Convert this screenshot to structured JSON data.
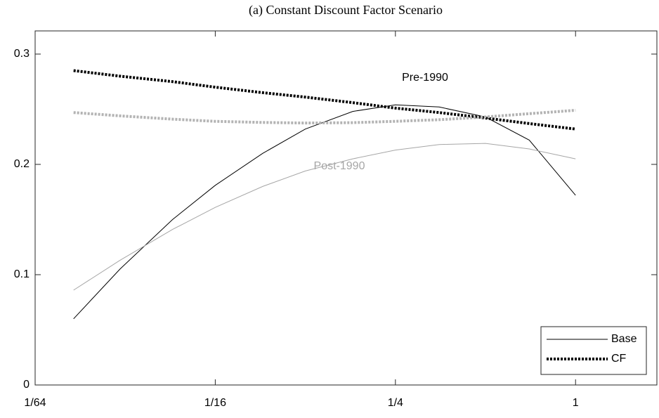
{
  "chart_data": {
    "type": "line",
    "title": "(a) Constant Discount Factor Scenario",
    "log_x_base": 2,
    "x": [
      0.021,
      0.03,
      0.045,
      0.0625,
      0.09,
      0.125,
      0.18,
      0.25,
      0.35,
      0.5,
      0.7,
      1
    ],
    "series": [
      {
        "color": "#000000",
        "dash": "solid",
        "width": 1,
        "values": [
          0.06,
          0.105,
          0.15,
          0.181,
          0.21,
          0.232,
          0.248,
          0.254,
          0.252,
          0.243,
          0.222,
          0.172
        ]
      },
      {
        "color": "#a6a6a6",
        "dash": "solid",
        "width": 1,
        "values": [
          0.086,
          0.113,
          0.141,
          0.161,
          0.18,
          0.194,
          0.205,
          0.213,
          0.218,
          0.219,
          0.214,
          0.205
        ]
      },
      {
        "color": "#000000",
        "dash": "dotted",
        "width": 4,
        "values": [
          0.285,
          0.28,
          0.275,
          0.27,
          0.265,
          0.261,
          0.256,
          0.251,
          0.247,
          0.242,
          0.237,
          0.232
        ]
      },
      {
        "color": "#b3b3b3",
        "dash": "dotted",
        "width": 4,
        "values": [
          0.247,
          0.244,
          0.241,
          0.239,
          0.238,
          0.2375,
          0.2378,
          0.239,
          0.2405,
          0.243,
          0.246,
          0.249
        ]
      }
    ],
    "annotations": [
      {
        "text": "Pre-1990",
        "color": "#000000"
      },
      {
        "text": "Post-1990",
        "color": "#a6a6a6"
      }
    ],
    "legend": {
      "location": "lower right",
      "entries": [
        {
          "label": "Base",
          "dash": "solid",
          "width": 1,
          "color": "#000000"
        },
        {
          "label": "CF",
          "dash": "dotted",
          "width": 4,
          "color": "#000000"
        }
      ]
    },
    "xlim": [
      0.015625,
      1.87
    ],
    "xticks": [
      {
        "value": 0.015625,
        "label": "1/64"
      },
      {
        "value": 0.0625,
        "label": "1/16"
      },
      {
        "value": 0.25,
        "label": "1/4"
      },
      1
    ],
    "ylim": [
      0,
      0.321
    ],
    "yticks": [
      0,
      0.1,
      0.2,
      0.3
    ]
  }
}
